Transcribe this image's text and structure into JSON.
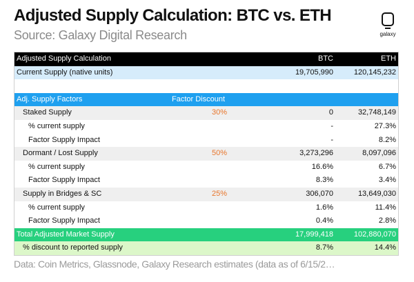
{
  "title": "Adjusted Supply Calculation: BTC vs. ETH",
  "subtitle": "Source: Galaxy Digital Research",
  "logo_text": "galaxy",
  "header": {
    "label": "Adjusted Supply Calculation",
    "btc": "BTC",
    "eth": "ETH"
  },
  "current_supply": {
    "label": "Current Supply (native units)",
    "btc": "19,705,990",
    "eth": "120,145,232"
  },
  "factors_header": {
    "label": "Adj. Supply Factors",
    "factor": "Factor Discount"
  },
  "staked": {
    "label": "Staked Supply",
    "factor": "30%",
    "btc": "0",
    "eth": "32,748,149",
    "pct_label": "% current supply",
    "pct_btc": "-",
    "pct_eth": "27.3%",
    "impact_label": "Factor Supply Impact",
    "impact_btc": "-",
    "impact_eth": "8.2%"
  },
  "dormant": {
    "label": "Dormant / Lost Supply",
    "factor": "50%",
    "btc": "3,273,296",
    "eth": "8,097,096",
    "pct_label": "% current supply",
    "pct_btc": "16.6%",
    "pct_eth": "6.7%",
    "impact_label": "Factor Supply Impact",
    "impact_btc": "8.3%",
    "impact_eth": "3.4%"
  },
  "bridges": {
    "label": "Supply in Bridges & SC",
    "factor": "25%",
    "btc": "306,070",
    "eth": "13,649,030",
    "pct_label": "% current supply",
    "pct_btc": "1.6%",
    "pct_eth": "11.4%",
    "impact_label": "Factor Supply Impact",
    "impact_btc": "0.4%",
    "impact_eth": "2.8%"
  },
  "total": {
    "label": "Total Adjusted Market Supply",
    "btc": "17,999,418",
    "eth": "102,880,070"
  },
  "discount": {
    "label": "% discount to reported supply",
    "btc": "8.7%",
    "eth": "14.4%"
  },
  "footer": "Data: Coin Metrics, Glassnode, Galaxy Research estimates (data as of 6/15/2…"
}
